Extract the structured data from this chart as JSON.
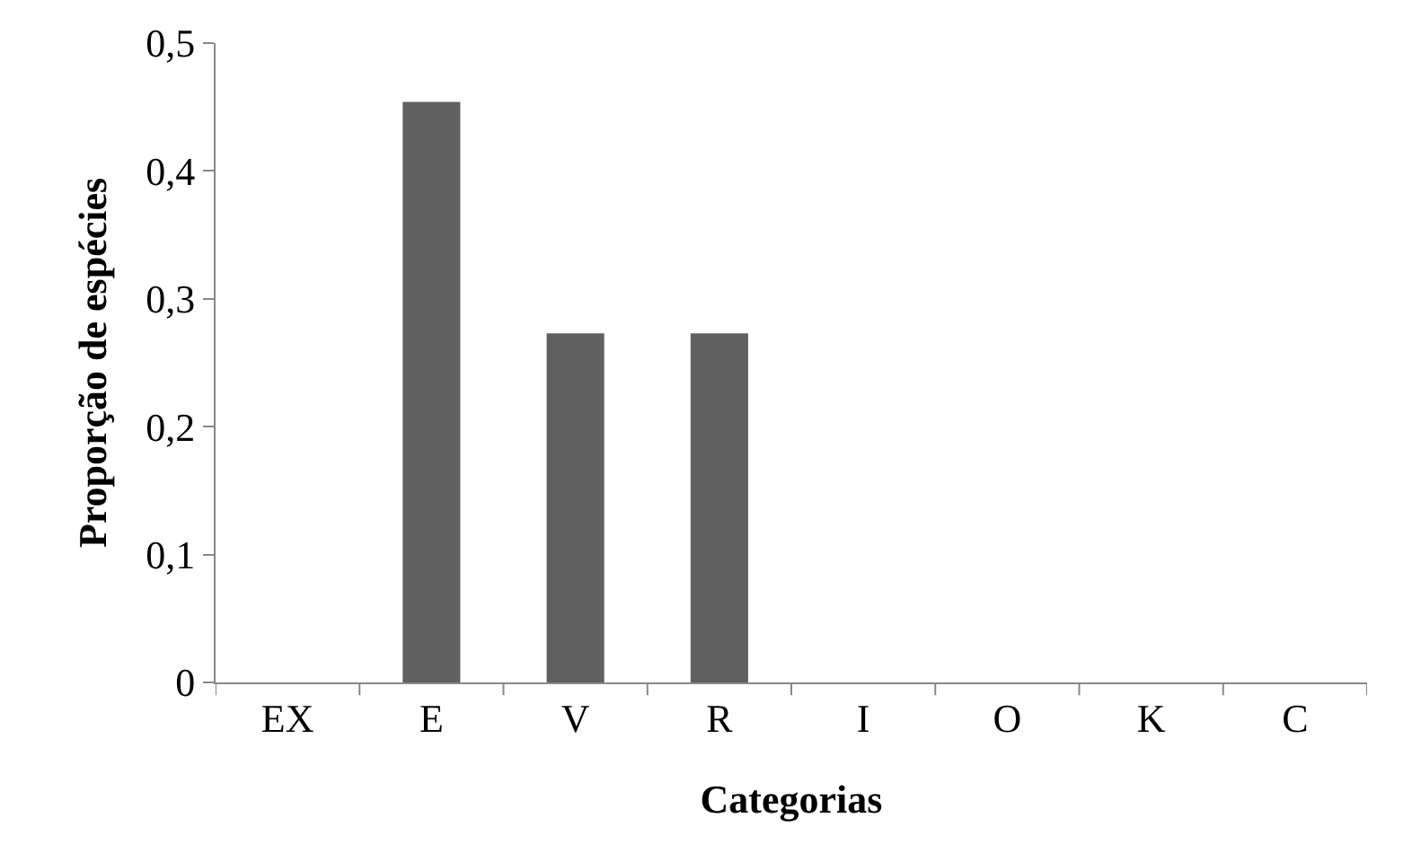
{
  "chart_data": {
    "type": "bar",
    "xlabel": "Categorias",
    "ylabel": "Proporção de espécies",
    "categories": [
      "EX",
      "E",
      "V",
      "R",
      "I",
      "O",
      "K",
      "C"
    ],
    "values": [
      0,
      0.454,
      0.273,
      0.273,
      0,
      0,
      0,
      0
    ],
    "color": "#606060",
    "ylim": [
      0,
      0.5
    ],
    "yticks": [
      {
        "value": 0,
        "label": "0"
      },
      {
        "value": 0.1,
        "label": "0,1"
      },
      {
        "value": 0.2,
        "label": "0,2"
      },
      {
        "value": 0.3,
        "label": "0,3"
      },
      {
        "value": 0.4,
        "label": "0,4"
      },
      {
        "value": 0.5,
        "label": "0,5"
      }
    ],
    "legend": false
  }
}
